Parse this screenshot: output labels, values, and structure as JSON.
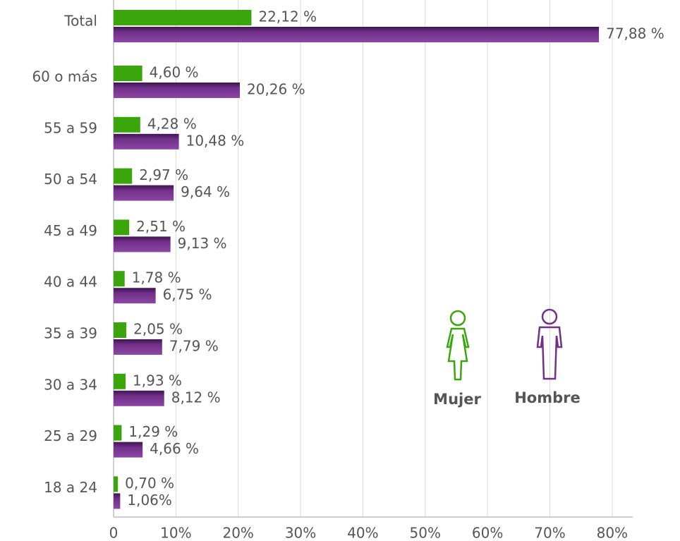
{
  "chart_data": {
    "type": "bar",
    "orientation": "horizontal",
    "categories": [
      "Total",
      "60 o más",
      "55 a 59",
      "50 a 54",
      "45 a 49",
      "40 a 44",
      "35 a 39",
      "30 a 34",
      "25 a 29",
      "18 a 24"
    ],
    "series": [
      {
        "name": "Mujer",
        "color": "#3aa60c",
        "values": [
          22.12,
          4.6,
          4.28,
          2.97,
          2.51,
          1.78,
          2.05,
          1.93,
          1.29,
          0.7
        ],
        "value_labels": [
          "22,12 %",
          "4,60 %",
          "4,28 %",
          "2,97 %",
          "2,51 %",
          "1,78 %",
          "2,05 %",
          "1,93 %",
          "1,29 %",
          "0,70 %"
        ]
      },
      {
        "name": "Hombre",
        "color": "#72308a",
        "values": [
          77.88,
          20.26,
          10.48,
          9.64,
          9.13,
          6.75,
          7.79,
          8.12,
          4.66,
          1.06
        ],
        "value_labels": [
          "77,88 %",
          "20,26 %",
          "10,48 %",
          "9,64 %",
          "9,13 %",
          "6,75 %",
          "7,79 %",
          "8,12 %",
          "4,66 %",
          "1,06%"
        ]
      }
    ],
    "xlim": [
      0,
      83.3
    ],
    "xticks": [
      0,
      {
        "value": 10,
        "label": "10%"
      },
      {
        "value": 20,
        "label": "20%"
      },
      {
        "value": 30,
        "label": "30%"
      },
      {
        "value": 40,
        "label": "40%"
      },
      {
        "value": 50,
        "label": "50%"
      },
      {
        "value": 60,
        "label": "60%"
      },
      {
        "value": 70,
        "label": "70%"
      },
      {
        "value": 80,
        "label": "80%"
      }
    ],
    "grid": true
  }
}
